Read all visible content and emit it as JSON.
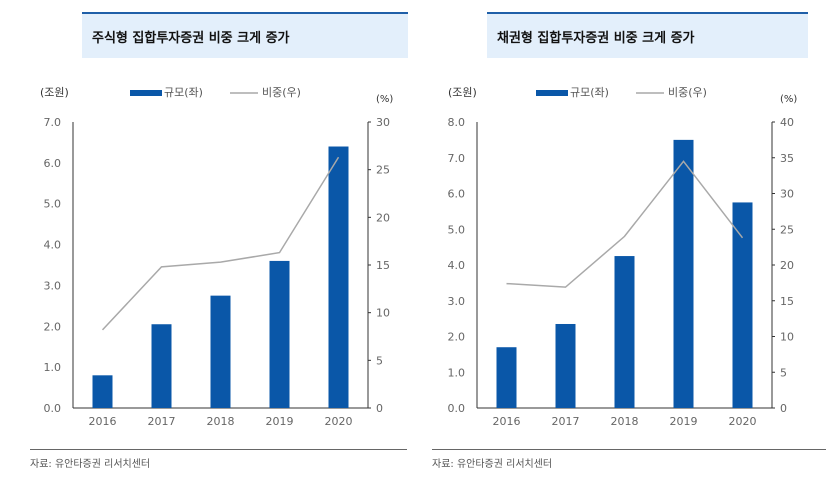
{
  "chart_data": [
    {
      "type": "bar+line",
      "title": "주식형 집합투자증권 비중 크게 증가",
      "categories": [
        "2016",
        "2017",
        "2018",
        "2019",
        "2020"
      ],
      "left_unit": "(조원)",
      "right_unit": "(%)",
      "left_ylim": [
        0,
        7
      ],
      "left_ticks": [
        "0.0",
        "1.0",
        "2.0",
        "3.0",
        "4.0",
        "5.0",
        "6.0",
        "7.0"
      ],
      "right_ylim": [
        0,
        30
      ],
      "right_ticks": [
        "0",
        "5",
        "10",
        "15",
        "20",
        "25",
        "30"
      ],
      "series": [
        {
          "name": "규모(좌)",
          "type": "bar",
          "axis": "left",
          "values": [
            0.8,
            2.05,
            2.75,
            3.6,
            6.4
          ]
        },
        {
          "name": "비중(우)",
          "type": "line",
          "axis": "right",
          "values": [
            8.2,
            14.8,
            15.3,
            16.3,
            26.3
          ]
        }
      ],
      "source": "자료: 유안타증권 리서치센터"
    },
    {
      "type": "bar+line",
      "title": "채권형 집합투자증권 비중 크게 증가",
      "categories": [
        "2016",
        "2017",
        "2018",
        "2019",
        "2020"
      ],
      "left_unit": "(조원)",
      "right_unit": "(%)",
      "left_ylim": [
        0,
        8
      ],
      "left_ticks": [
        "0.0",
        "1.0",
        "2.0",
        "3.0",
        "4.0",
        "5.0",
        "6.0",
        "7.0",
        "8.0"
      ],
      "right_ylim": [
        0,
        40
      ],
      "right_ticks": [
        "0",
        "5",
        "10",
        "15",
        "20",
        "25",
        "30",
        "35",
        "40"
      ],
      "series": [
        {
          "name": "규모(좌)",
          "type": "bar",
          "axis": "left",
          "values": [
            1.7,
            2.35,
            4.25,
            7.5,
            5.75
          ]
        },
        {
          "name": "비중(우)",
          "type": "line",
          "axis": "right",
          "values": [
            17.4,
            16.9,
            24.0,
            34.5,
            23.8
          ]
        }
      ],
      "source": "자료: 유안타증권 리서치센터"
    }
  ],
  "colors": {
    "bar": "#0a57a8",
    "line": "#a9a9a9",
    "title_bg": "#e3effb",
    "title_border": "#1f5fa8"
  }
}
